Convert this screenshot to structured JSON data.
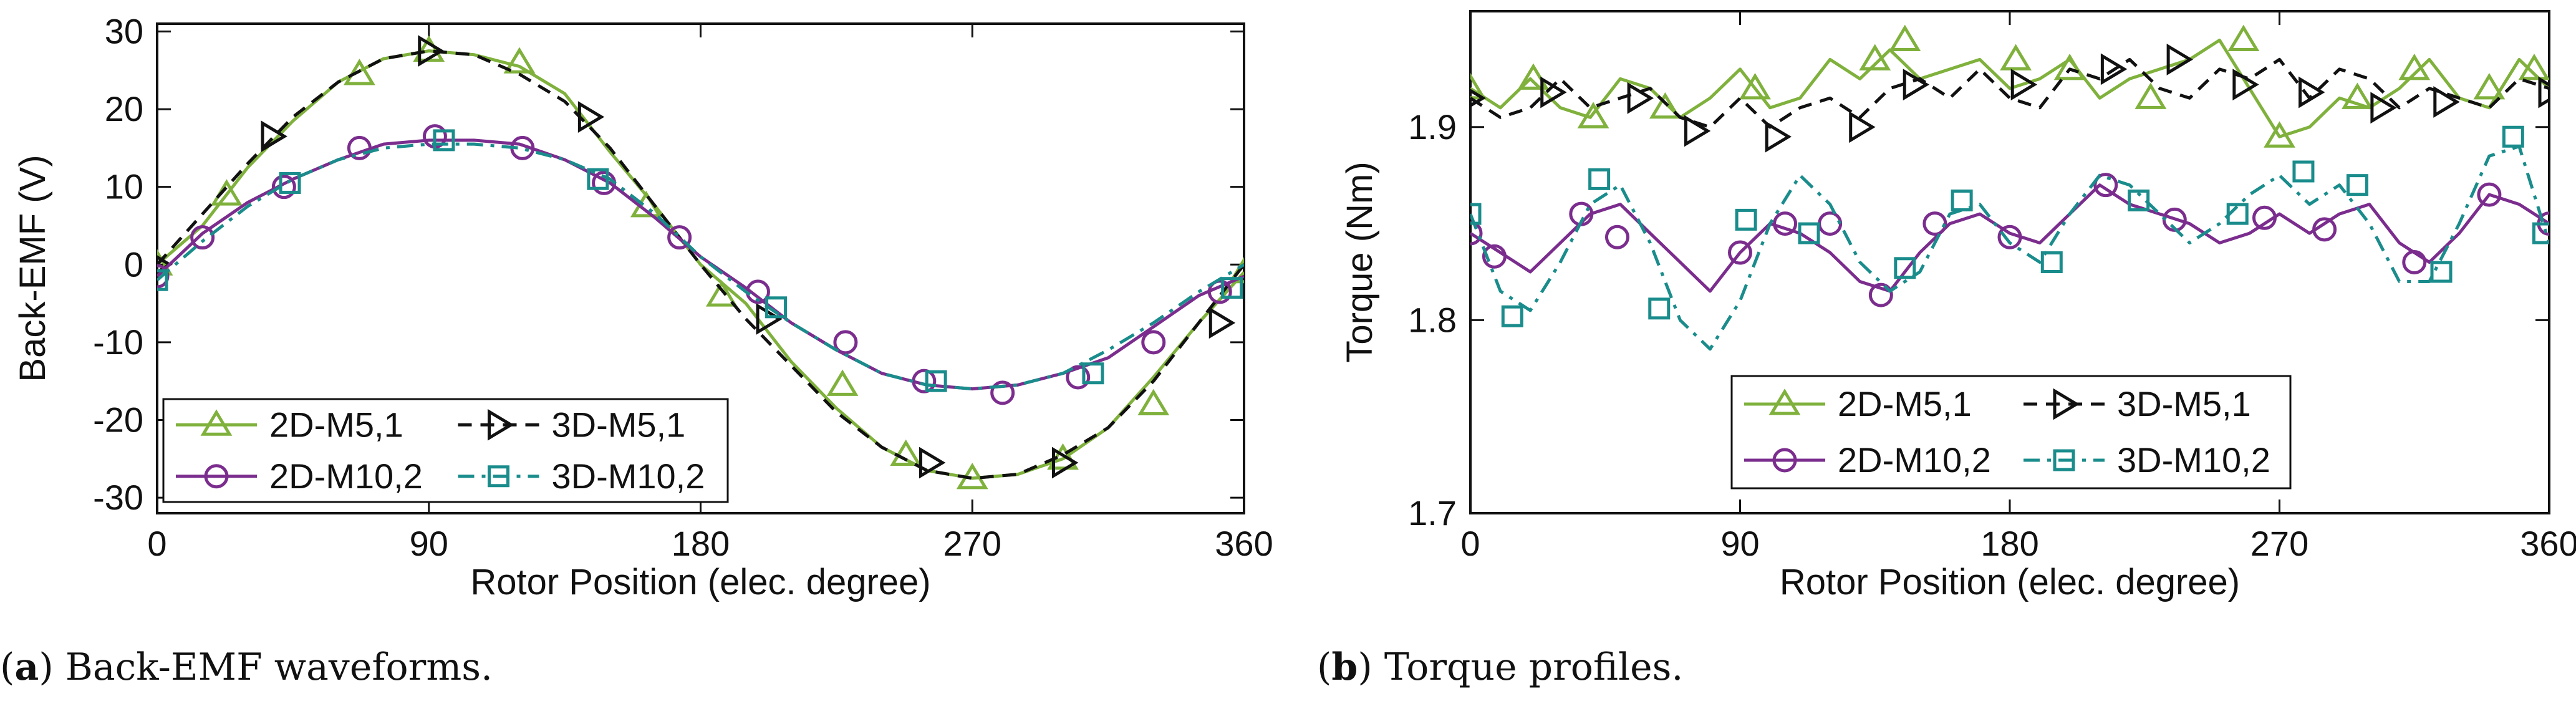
{
  "captions": [
    {
      "letter": "a",
      "open": "(",
      "close": ")",
      "text": " Back-EMF waveforms."
    },
    {
      "letter": "b",
      "open": "(",
      "close": ")",
      "text": " Torque profiles."
    }
  ],
  "colors": {
    "green": "#7fb13c",
    "black": "#111111",
    "purple": "#7b2d8e",
    "teal": "#1a8c8c"
  },
  "chart_data": [
    {
      "type": "line",
      "title": "Back-EMF waveforms.",
      "xlabel": "Rotor Position (elec. degree)",
      "ylabel": "Back-EMF (V)",
      "xlim": [
        0,
        360
      ],
      "ylim": [
        -32,
        31
      ],
      "xticks": [
        0,
        90,
        180,
        270,
        360
      ],
      "xtick_labels": [
        "0",
        "90",
        "180",
        "270",
        "360"
      ],
      "yticks": [
        -30,
        -20,
        -10,
        0,
        10,
        20,
        30
      ],
      "ytick_labels": [
        "-30",
        "-20",
        "-10",
        "0",
        "10",
        "20",
        "30"
      ],
      "legend_position": "bottom-left",
      "series": [
        {
          "name": "2D-M5,1",
          "color": "green",
          "dash": "solid",
          "marker": "triangle-up",
          "x": [
            0,
            15,
            30,
            45,
            60,
            75,
            90,
            105,
            120,
            135,
            150,
            165,
            180,
            195,
            210,
            225,
            240,
            255,
            270,
            285,
            300,
            315,
            330,
            345,
            360
          ],
          "y": [
            0,
            5,
            12.5,
            18.5,
            23.5,
            26.5,
            27.5,
            27,
            25.5,
            22,
            14.5,
            7.5,
            0,
            -5,
            -12.5,
            -18.5,
            -23.5,
            -26.5,
            -27.5,
            -27,
            -25,
            -21,
            -14.5,
            -7.5,
            -1
          ],
          "markers_x": [
            0,
            23,
            67,
            90,
            120,
            162,
            187,
            227,
            248,
            270,
            300,
            330,
            360
          ],
          "markers_y": [
            0,
            9,
            24.5,
            27.5,
            26,
            7.5,
            -4,
            -15.5,
            -24.5,
            -27.5,
            -25,
            -18,
            -1
          ]
        },
        {
          "name": "3D-M5,1",
          "color": "black",
          "dash": "dashed",
          "marker": "triangle-right",
          "x": [
            0,
            15,
            30,
            45,
            60,
            75,
            90,
            105,
            120,
            135,
            150,
            165,
            180,
            195,
            210,
            225,
            240,
            255,
            270,
            285,
            300,
            315,
            330,
            345,
            360
          ],
          "y": [
            0,
            6.5,
            13,
            19,
            23.5,
            26.5,
            27.5,
            27,
            24.5,
            21,
            15,
            7.5,
            0,
            -7,
            -13,
            -19,
            -23.5,
            -26.5,
            -27.5,
            -27,
            -24.5,
            -21,
            -15,
            -7.5,
            0
          ],
          "markers_x": [
            0,
            38,
            90,
            143,
            202,
            256,
            300,
            352
          ],
          "markers_y": [
            0,
            16.5,
            27.5,
            19,
            -7,
            -25.5,
            -25.5,
            -7.5
          ]
        },
        {
          "name": "2D-M10,2",
          "color": "purple",
          "dash": "solid",
          "marker": "circle",
          "x": [
            0,
            15,
            30,
            45,
            60,
            75,
            90,
            105,
            120,
            135,
            150,
            165,
            180,
            195,
            210,
            225,
            240,
            255,
            270,
            285,
            300,
            315,
            330,
            345,
            360
          ],
          "y": [
            -1.5,
            4,
            8,
            11,
            13.5,
            15.5,
            16,
            16,
            15.5,
            13.5,
            10.5,
            6,
            1,
            -3,
            -7.5,
            -11,
            -14,
            -15.5,
            -16,
            -15.5,
            -14,
            -12,
            -8,
            -4,
            -1.5
          ],
          "markers_x": [
            0,
            15,
            42,
            67,
            92,
            121,
            148,
            173,
            199,
            228,
            254,
            280,
            305,
            330,
            352
          ],
          "markers_y": [
            -1.5,
            3.5,
            10,
            15,
            16.5,
            15,
            10.5,
            3.5,
            -3.5,
            -10,
            -15,
            -16.5,
            -14.5,
            -10,
            -3.5
          ]
        },
        {
          "name": "3D-M10,2",
          "color": "teal",
          "dash": "dashdot",
          "marker": "square",
          "x": [
            0,
            15,
            30,
            45,
            60,
            75,
            90,
            105,
            120,
            135,
            150,
            165,
            180,
            195,
            210,
            225,
            240,
            255,
            270,
            285,
            300,
            315,
            330,
            345,
            360
          ],
          "y": [
            -2,
            3,
            7.5,
            11,
            13.5,
            15,
            15.5,
            15.5,
            15,
            13.5,
            11,
            6.5,
            1,
            -3.5,
            -7.5,
            -11,
            -14,
            -15.5,
            -16,
            -15.5,
            -14,
            -11,
            -7.5,
            -3.5,
            0
          ],
          "markers_x": [
            0,
            44,
            95,
            146,
            205,
            258,
            310,
            356
          ],
          "markers_y": [
            -2,
            10.5,
            16,
            11,
            -5.5,
            -15,
            -14,
            -3
          ]
        }
      ]
    },
    {
      "type": "line",
      "title": "Torque profiles.",
      "xlabel": "Rotor Position (elec. degree)",
      "ylabel": "Torque (Nm)",
      "xlim": [
        0,
        360
      ],
      "ylim": [
        1.7,
        1.96
      ],
      "xticks": [
        0,
        90,
        180,
        270,
        360
      ],
      "xtick_labels": [
        "0",
        "90",
        "180",
        "270",
        "360"
      ],
      "yticks": [
        1.7,
        1.8,
        1.9
      ],
      "ytick_labels": [
        "1.7",
        "1.8",
        "1.9"
      ],
      "legend_position": "bottom-center",
      "series": [
        {
          "name": "2D-M5,1",
          "color": "green",
          "dash": "solid",
          "marker": "triangle-up",
          "x": [
            0,
            10,
            20,
            30,
            40,
            50,
            60,
            70,
            80,
            90,
            100,
            110,
            120,
            130,
            140,
            150,
            160,
            170,
            180,
            190,
            200,
            210,
            220,
            230,
            240,
            250,
            260,
            270,
            280,
            290,
            300,
            310,
            320,
            330,
            340,
            350,
            360
          ],
          "y": [
            1.92,
            1.91,
            1.925,
            1.91,
            1.905,
            1.925,
            1.92,
            1.905,
            1.915,
            1.93,
            1.91,
            1.915,
            1.935,
            1.925,
            1.94,
            1.925,
            1.93,
            1.935,
            1.92,
            1.925,
            1.935,
            1.915,
            1.925,
            1.93,
            1.935,
            1.945,
            1.92,
            1.895,
            1.9,
            1.915,
            1.91,
            1.92,
            1.935,
            1.915,
            1.91,
            1.935,
            1.92
          ],
          "markers_x": [
            0,
            21,
            41,
            65,
            95,
            135,
            145,
            182,
            200,
            227,
            258,
            270,
            296,
            315,
            340,
            355
          ],
          "markers_y": [
            1.92,
            1.925,
            1.905,
            1.91,
            1.92,
            1.935,
            1.945,
            1.935,
            1.93,
            1.915,
            1.945,
            1.895,
            1.915,
            1.93,
            1.92,
            1.93
          ]
        },
        {
          "name": "3D-M5,1",
          "color": "black",
          "dash": "dashed",
          "marker": "triangle-right",
          "x": [
            0,
            10,
            20,
            30,
            40,
            50,
            60,
            70,
            80,
            90,
            100,
            110,
            120,
            130,
            140,
            150,
            160,
            170,
            180,
            190,
            200,
            210,
            220,
            230,
            240,
            250,
            260,
            270,
            280,
            290,
            300,
            310,
            320,
            330,
            340,
            350,
            360
          ],
          "y": [
            1.915,
            1.905,
            1.91,
            1.925,
            1.91,
            1.915,
            1.92,
            1.905,
            1.9,
            1.915,
            1.9,
            1.91,
            1.915,
            1.905,
            1.92,
            1.925,
            1.915,
            1.93,
            1.915,
            1.91,
            1.93,
            1.925,
            1.935,
            1.92,
            1.915,
            1.93,
            1.925,
            1.935,
            1.915,
            1.93,
            1.925,
            1.91,
            1.92,
            1.915,
            1.91,
            1.925,
            1.92
          ],
          "markers_x": [
            0,
            27,
            56,
            75,
            102,
            130,
            148,
            184,
            214,
            236,
            258,
            280,
            304,
            325,
            360
          ],
          "markers_y": [
            1.915,
            1.918,
            1.915,
            1.898,
            1.895,
            1.9,
            1.922,
            1.922,
            1.93,
            1.935,
            1.922,
            1.918,
            1.91,
            1.913,
            1.918
          ]
        },
        {
          "name": "2D-M10,2",
          "color": "purple",
          "dash": "solid",
          "marker": "circle",
          "x": [
            0,
            10,
            20,
            30,
            40,
            50,
            60,
            70,
            80,
            90,
            100,
            110,
            120,
            130,
            140,
            150,
            160,
            170,
            180,
            190,
            200,
            210,
            220,
            230,
            240,
            250,
            260,
            270,
            280,
            290,
            300,
            310,
            320,
            330,
            340,
            350,
            360
          ],
          "y": [
            1.845,
            1.835,
            1.825,
            1.84,
            1.855,
            1.86,
            1.845,
            1.83,
            1.815,
            1.835,
            1.85,
            1.845,
            1.835,
            1.82,
            1.815,
            1.835,
            1.85,
            1.855,
            1.845,
            1.84,
            1.855,
            1.87,
            1.86,
            1.855,
            1.85,
            1.84,
            1.845,
            1.855,
            1.845,
            1.855,
            1.86,
            1.84,
            1.83,
            1.845,
            1.865,
            1.86,
            1.85
          ],
          "markers_x": [
            0,
            8,
            37,
            49,
            90,
            105,
            120,
            137,
            155,
            180,
            212,
            235,
            265,
            285,
            315,
            340,
            360
          ],
          "markers_y": [
            1.845,
            1.833,
            1.855,
            1.843,
            1.835,
            1.85,
            1.85,
            1.813,
            1.85,
            1.843,
            1.87,
            1.852,
            1.853,
            1.847,
            1.83,
            1.865,
            1.85
          ]
        },
        {
          "name": "3D-M10,2",
          "color": "teal",
          "dash": "dashdot",
          "marker": "square",
          "x": [
            0,
            10,
            20,
            30,
            40,
            50,
            60,
            70,
            80,
            90,
            100,
            110,
            120,
            130,
            140,
            150,
            160,
            170,
            180,
            190,
            200,
            210,
            220,
            230,
            240,
            250,
            260,
            270,
            280,
            290,
            300,
            310,
            320,
            330,
            340,
            350,
            360
          ],
          "y": [
            1.855,
            1.815,
            1.805,
            1.83,
            1.86,
            1.87,
            1.84,
            1.8,
            1.785,
            1.81,
            1.85,
            1.875,
            1.86,
            1.83,
            1.815,
            1.825,
            1.855,
            1.86,
            1.84,
            1.83,
            1.855,
            1.875,
            1.87,
            1.855,
            1.84,
            1.85,
            1.865,
            1.875,
            1.86,
            1.87,
            1.85,
            1.82,
            1.82,
            1.85,
            1.885,
            1.89,
            1.84
          ],
          "markers_x": [
            0,
            14,
            43,
            63,
            92,
            113,
            145,
            164,
            194,
            223,
            256,
            278,
            296,
            324,
            348,
            358
          ],
          "markers_y": [
            1.855,
            1.802,
            1.873,
            1.806,
            1.852,
            1.845,
            1.827,
            1.862,
            1.83,
            1.862,
            1.855,
            1.877,
            1.87,
            1.825,
            1.895,
            1.845
          ]
        }
      ]
    }
  ]
}
